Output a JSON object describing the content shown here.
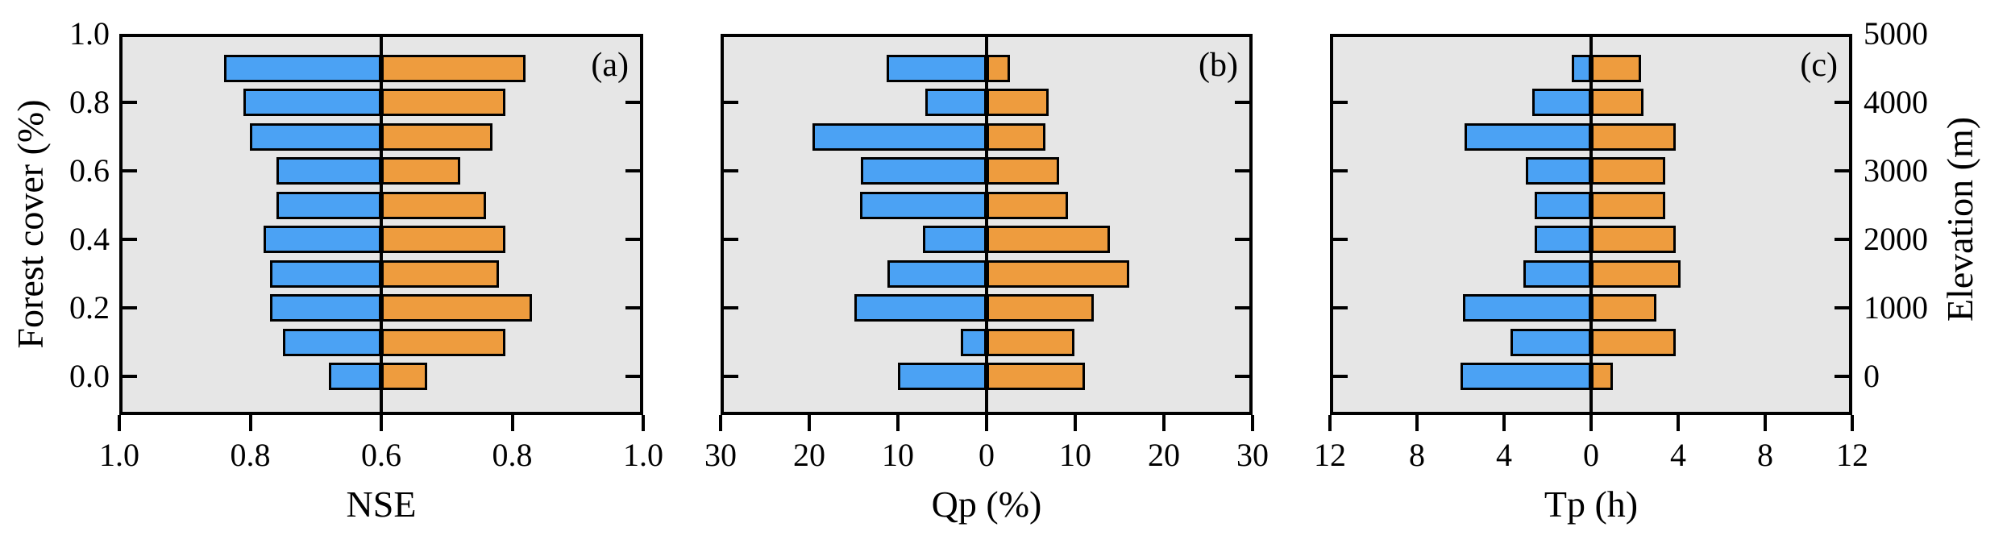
{
  "figure": {
    "colors": {
      "left_series": "#4BA2F4",
      "right_series": "#EE9C3E",
      "panel_background": "#E6E6E6",
      "line": "#000000"
    }
  },
  "chart_data": {
    "type": "bar",
    "subtype": "diverging-horizontal-pyramid",
    "grid": "off",
    "legend": "none",
    "rows": {
      "forest_cover": [
        0.9,
        0.8,
        0.7,
        0.6,
        0.5,
        0.4,
        0.3,
        0.2,
        0.1,
        0.0
      ],
      "elevation_m": [
        4500,
        4000,
        3500,
        3000,
        2500,
        2000,
        1500,
        1000,
        500,
        0
      ]
    },
    "y_axis_left": {
      "label": "Forest cover (%)",
      "tick_labels": [
        "1.0",
        "0.8",
        "0.6",
        "0.4",
        "0.2",
        "0.0"
      ]
    },
    "y_axis_right": {
      "label": "Elevation (m)",
      "tick_labels": [
        "5000",
        "4000",
        "3000",
        "2000",
        "1000",
        "0"
      ]
    },
    "panels": [
      {
        "panel_label": "(a)",
        "xlabel": "NSE",
        "center_value": 0.6,
        "axis_max_each_side": 1.0,
        "x_tick_labels": [
          "1.0",
          "0.8",
          "0.6",
          "0.8",
          "1.0"
        ],
        "left_series": {
          "color_name": "blue",
          "values": [
            0.84,
            0.81,
            0.8,
            0.76,
            0.76,
            0.78,
            0.77,
            0.77,
            0.75,
            0.68
          ]
        },
        "right_series": {
          "color_name": "orange",
          "values": [
            0.82,
            0.79,
            0.77,
            0.72,
            0.76,
            0.79,
            0.78,
            0.83,
            0.79,
            0.67
          ]
        }
      },
      {
        "panel_label": "(b)",
        "xlabel": "Qp (%)",
        "center_value": 0,
        "axis_max_each_side": 30,
        "x_tick_labels": [
          "30",
          "20",
          "10",
          "0",
          "10",
          "20",
          "30"
        ],
        "left_series": {
          "color_name": "blue",
          "values": [
            11.3,
            6.9,
            19.6,
            14.2,
            14.3,
            7.2,
            11.2,
            14.9,
            2.9,
            10.0
          ]
        },
        "right_series": {
          "color_name": "orange",
          "values": [
            2.6,
            7.0,
            6.6,
            8.2,
            9.2,
            13.9,
            16.1,
            12.1,
            9.9,
            11.1
          ]
        }
      },
      {
        "panel_label": "(c)",
        "xlabel": "Tp (h)",
        "center_value": 0,
        "axis_max_each_side": 12,
        "x_tick_labels": [
          "12",
          "8",
          "4",
          "0",
          "4",
          "8",
          "12"
        ],
        "left_series": {
          "color_name": "blue",
          "values": [
            0.9,
            2.7,
            5.8,
            3.0,
            2.6,
            2.6,
            3.1,
            5.9,
            3.7,
            6.0
          ]
        },
        "right_series": {
          "color_name": "orange",
          "values": [
            2.3,
            2.4,
            3.9,
            3.4,
            3.4,
            3.9,
            4.1,
            3.0,
            3.9,
            1.0
          ]
        }
      }
    ]
  }
}
